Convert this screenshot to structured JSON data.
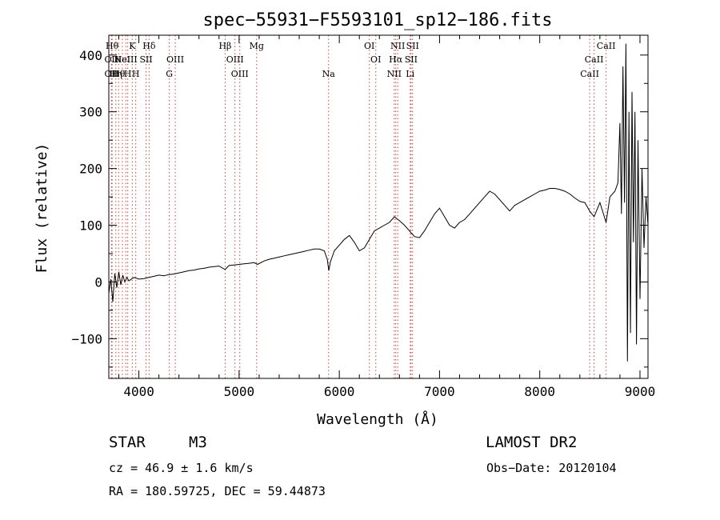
{
  "chart_data": {
    "type": "line",
    "title": "spec−55931−F5593101_sp12−186.fits",
    "xlabel": "Wavelength (Å)",
    "ylabel": "Flux (relative)",
    "xlim": [
      3700,
      9080
    ],
    "ylim": [
      -170,
      435
    ],
    "x_ticks": [
      4000,
      5000,
      6000,
      7000,
      8000,
      9000
    ],
    "y_ticks": [
      -100,
      0,
      100,
      200,
      300,
      400
    ],
    "y_tick_labels": [
      "−100",
      "0",
      "100",
      "200",
      "300",
      "400"
    ],
    "grid": false,
    "series": [
      {
        "color": "#000000",
        "points": [
          [
            3700,
            -20
          ],
          [
            3720,
            5
          ],
          [
            3740,
            -35
          ],
          [
            3760,
            15
          ],
          [
            3780,
            -10
          ],
          [
            3800,
            18
          ],
          [
            3820,
            -5
          ],
          [
            3840,
            12
          ],
          [
            3860,
            0
          ],
          [
            3880,
            8
          ],
          [
            3900,
            2
          ],
          [
            3950,
            8
          ],
          [
            4000,
            5
          ],
          [
            4050,
            6
          ],
          [
            4100,
            8
          ],
          [
            4150,
            10
          ],
          [
            4200,
            12
          ],
          [
            4250,
            11
          ],
          [
            4300,
            13
          ],
          [
            4350,
            14
          ],
          [
            4400,
            16
          ],
          [
            4450,
            18
          ],
          [
            4500,
            20
          ],
          [
            4550,
            21
          ],
          [
            4600,
            23
          ],
          [
            4650,
            24
          ],
          [
            4700,
            26
          ],
          [
            4750,
            27
          ],
          [
            4800,
            28
          ],
          [
            4861,
            22
          ],
          [
            4900,
            29
          ],
          [
            4950,
            30
          ],
          [
            5000,
            31
          ],
          [
            5050,
            32
          ],
          [
            5100,
            33
          ],
          [
            5150,
            34
          ],
          [
            5183,
            31
          ],
          [
            5250,
            37
          ],
          [
            5300,
            40
          ],
          [
            5350,
            42
          ],
          [
            5400,
            44
          ],
          [
            5450,
            46
          ],
          [
            5500,
            48
          ],
          [
            5550,
            50
          ],
          [
            5600,
            52
          ],
          [
            5650,
            54
          ],
          [
            5700,
            56
          ],
          [
            5750,
            58
          ],
          [
            5800,
            58
          ],
          [
            5850,
            55
          ],
          [
            5880,
            40
          ],
          [
            5895,
            20
          ],
          [
            5910,
            35
          ],
          [
            5950,
            55
          ],
          [
            6000,
            65
          ],
          [
            6050,
            75
          ],
          [
            6100,
            82
          ],
          [
            6150,
            70
          ],
          [
            6200,
            55
          ],
          [
            6250,
            60
          ],
          [
            6300,
            75
          ],
          [
            6350,
            90
          ],
          [
            6400,
            95
          ],
          [
            6450,
            100
          ],
          [
            6500,
            105
          ],
          [
            6550,
            115
          ],
          [
            6600,
            108
          ],
          [
            6650,
            100
          ],
          [
            6700,
            90
          ],
          [
            6750,
            80
          ],
          [
            6800,
            78
          ],
          [
            6850,
            90
          ],
          [
            6900,
            105
          ],
          [
            6950,
            120
          ],
          [
            7000,
            130
          ],
          [
            7050,
            115
          ],
          [
            7100,
            100
          ],
          [
            7150,
            95
          ],
          [
            7200,
            105
          ],
          [
            7250,
            110
          ],
          [
            7300,
            120
          ],
          [
            7350,
            130
          ],
          [
            7400,
            140
          ],
          [
            7450,
            150
          ],
          [
            7500,
            160
          ],
          [
            7550,
            155
          ],
          [
            7600,
            145
          ],
          [
            7650,
            135
          ],
          [
            7700,
            125
          ],
          [
            7750,
            135
          ],
          [
            7800,
            140
          ],
          [
            7850,
            145
          ],
          [
            7900,
            150
          ],
          [
            7950,
            155
          ],
          [
            8000,
            160
          ],
          [
            8050,
            162
          ],
          [
            8100,
            165
          ],
          [
            8150,
            165
          ],
          [
            8200,
            163
          ],
          [
            8250,
            160
          ],
          [
            8300,
            155
          ],
          [
            8350,
            148
          ],
          [
            8400,
            142
          ],
          [
            8450,
            140
          ],
          [
            8498,
            125
          ],
          [
            8542,
            115
          ],
          [
            8600,
            140
          ],
          [
            8662,
            105
          ],
          [
            8700,
            150
          ],
          [
            8750,
            160
          ],
          [
            8780,
            175
          ],
          [
            8800,
            280
          ],
          [
            8815,
            120
          ],
          [
            8830,
            380
          ],
          [
            8845,
            140
          ],
          [
            8860,
            420
          ],
          [
            8875,
            -140
          ],
          [
            8890,
            300
          ],
          [
            8905,
            -90
          ],
          [
            8920,
            335
          ],
          [
            8935,
            70
          ],
          [
            8950,
            300
          ],
          [
            8965,
            -110
          ],
          [
            8980,
            250
          ],
          [
            9000,
            -30
          ],
          [
            9020,
            200
          ],
          [
            9040,
            60
          ],
          [
            9060,
            150
          ],
          [
            9080,
            100
          ]
        ]
      }
    ],
    "line_markers": [
      {
        "wave": 3733,
        "label": "Hθ",
        "row": 0
      },
      {
        "wave": 3727,
        "label": "OII",
        "row": 1
      },
      {
        "wave": 3727,
        "label": "OII",
        "row": 2
      },
      {
        "wave": 3770,
        "label": "Hη",
        "row": 2
      },
      {
        "wave": 3798,
        "label": "Hθ",
        "row": 2
      },
      {
        "wave": 3835,
        "label": "HeI",
        "row": 1
      },
      {
        "wave": 3869,
        "label": "NeIII",
        "row": 1
      },
      {
        "wave": 3889,
        "label": "H",
        "row": 2
      },
      {
        "wave": 3934,
        "label": "K",
        "row": 0
      },
      {
        "wave": 3969,
        "label": "H",
        "row": 2
      },
      {
        "wave": 4072,
        "label": "SII",
        "row": 1
      },
      {
        "wave": 4102,
        "label": "Hδ",
        "row": 0
      },
      {
        "wave": 4304,
        "label": "G",
        "row": 2
      },
      {
        "wave": 4363,
        "label": "OIII",
        "row": 1
      },
      {
        "wave": 4861,
        "label": "Hβ",
        "row": 0
      },
      {
        "wave": 4959,
        "label": "OIII",
        "row": 1
      },
      {
        "wave": 5007,
        "label": "OIII",
        "row": 2
      },
      {
        "wave": 5175,
        "label": "Mg",
        "row": 0
      },
      {
        "wave": 5893,
        "label": "Na",
        "row": 2
      },
      {
        "wave": 6300,
        "label": "OI",
        "row": 0
      },
      {
        "wave": 6364,
        "label": "OI",
        "row": 1
      },
      {
        "wave": 6548,
        "label": "NII",
        "row": 2
      },
      {
        "wave": 6563,
        "label": "Hα",
        "row": 1
      },
      {
        "wave": 6583,
        "label": "NII",
        "row": 0
      },
      {
        "wave": 6707,
        "label": "Li",
        "row": 2
      },
      {
        "wave": 6716,
        "label": "SII",
        "row": 1
      },
      {
        "wave": 6731,
        "label": "SII",
        "row": 0
      },
      {
        "wave": 8498,
        "label": "CaII",
        "row": 2
      },
      {
        "wave": 8542,
        "label": "CaII",
        "row": 1
      },
      {
        "wave": 8662,
        "label": "CaII",
        "row": 0
      }
    ],
    "marker_color": "#d04040"
  },
  "info": {
    "object_type": "STAR",
    "subclass": "M3",
    "survey": "LAMOST DR2",
    "cz": "cz = 46.9 ± 1.6 km/s",
    "obs_date": "Obs−Date: 20120104",
    "coords": "RA = 180.59725, DEC =  59.44873"
  }
}
